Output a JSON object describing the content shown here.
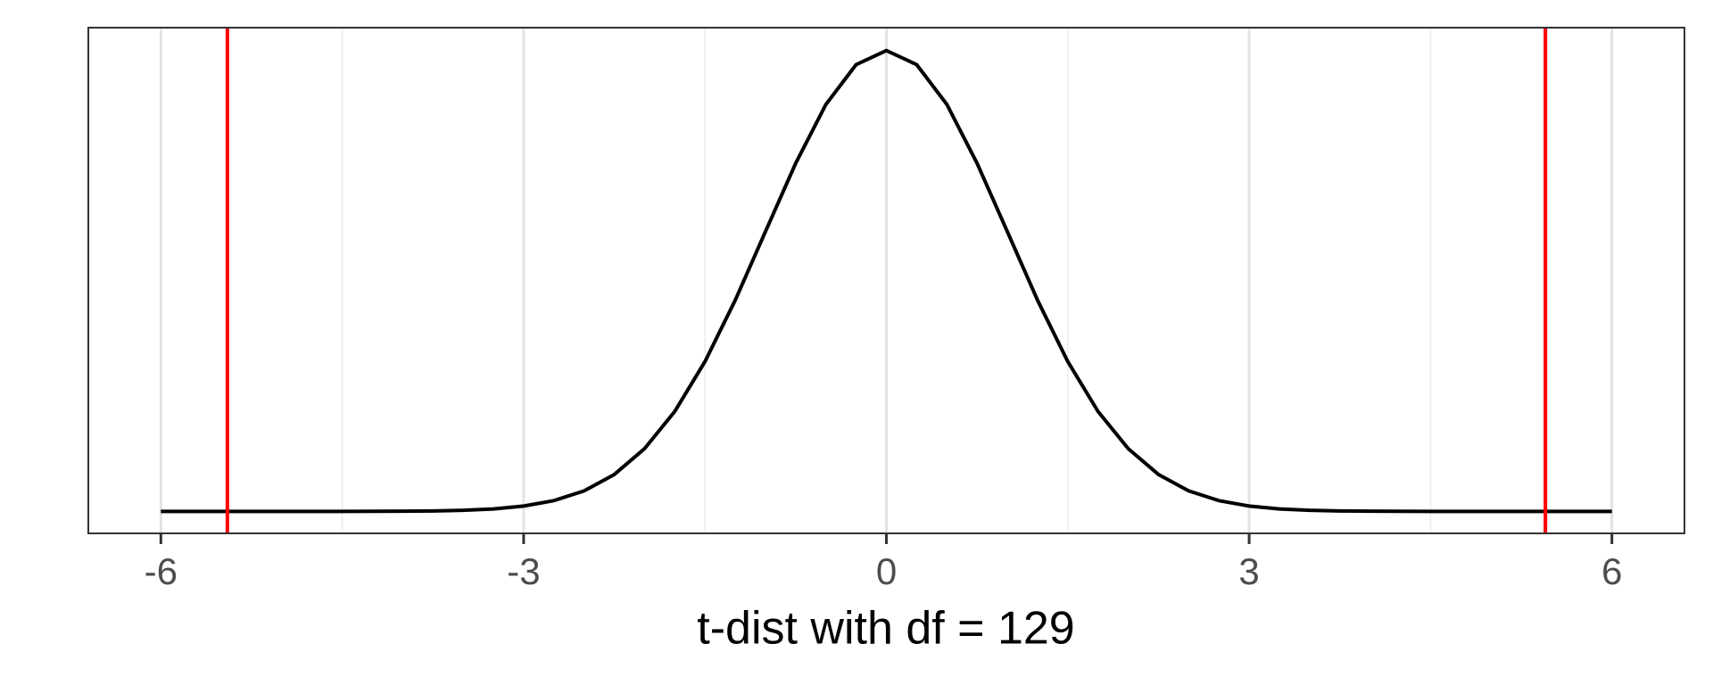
{
  "chart_data": {
    "type": "line",
    "x_label": "t-dist with df = 129",
    "x": [
      -6,
      -5.75,
      -5.5,
      -5.25,
      -5,
      -4.75,
      -4.5,
      -4.25,
      -4,
      -3.75,
      -3.5,
      -3.25,
      -3,
      -2.75,
      -2.5,
      -2.25,
      -2,
      -1.75,
      -1.5,
      -1.25,
      -1,
      -0.75,
      -0.5,
      -0.25,
      0,
      0.25,
      0.5,
      0.75,
      1,
      1.25,
      1.5,
      1.75,
      2,
      2.25,
      2.5,
      2.75,
      3,
      3.25,
      3.5,
      3.75,
      4,
      4.25,
      4.5,
      4.75,
      5,
      5.25,
      5.5,
      5.75,
      6
    ],
    "series": [
      {
        "color": "#000000",
        "values": [
          0,
          0,
          0,
          0,
          0,
          0,
          0,
          0.0001,
          0.0002,
          0.0004,
          0.0009,
          0.0021,
          0.0046,
          0.0093,
          0.0177,
          0.0319,
          0.0542,
          0.0864,
          0.1295,
          0.1825,
          0.2418,
          0.3008,
          0.3517,
          0.3861,
          0.3982,
          0.3861,
          0.3517,
          0.3008,
          0.2418,
          0.1825,
          0.1295,
          0.0864,
          0.0542,
          0.0319,
          0.0177,
          0.0093,
          0.0046,
          0.0021,
          0.0009,
          0.0004,
          0.0002,
          0.0001,
          0,
          0,
          0,
          0,
          0,
          0,
          0
        ]
      }
    ],
    "vlines": [
      -5.45,
      5.45
    ],
    "vline_color": "#ff0000",
    "xlim": [
      -6.6,
      6.6
    ],
    "ylim": [
      -0.019,
      0.418
    ],
    "xticks": [
      -6,
      -3,
      0,
      3,
      6
    ],
    "minor_xticks": [
      -4.5,
      -1.5,
      1.5,
      4.5
    ],
    "grid": true
  }
}
